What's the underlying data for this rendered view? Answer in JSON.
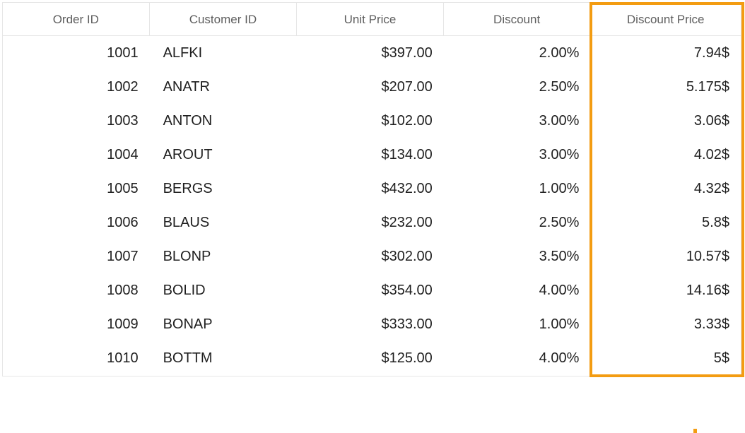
{
  "grid": {
    "columns": [
      "Order ID",
      "Customer ID",
      "Unit Price",
      "Discount",
      "Discount Price"
    ],
    "rows": [
      [
        "1001",
        "ALFKI",
        "$397.00",
        "2.00%",
        "7.94$"
      ],
      [
        "1002",
        "ANATR",
        "$207.00",
        "2.50%",
        "5.175$"
      ],
      [
        "1003",
        "ANTON",
        "$102.00",
        "3.00%",
        "3.06$"
      ],
      [
        "1004",
        "AROUT",
        "$134.00",
        "3.00%",
        "4.02$"
      ],
      [
        "1005",
        "BERGS",
        "$432.00",
        "1.00%",
        "4.32$"
      ],
      [
        "1006",
        "BLAUS",
        "$232.00",
        "2.50%",
        "5.8$"
      ],
      [
        "1007",
        "BLONP",
        "$302.00",
        "3.50%",
        "10.57$"
      ],
      [
        "1008",
        "BOLID",
        "$354.00",
        "4.00%",
        "14.16$"
      ],
      [
        "1009",
        "BONAP",
        "$333.00",
        "1.00%",
        "3.33$"
      ],
      [
        "1010",
        "BOTTM",
        "$125.00",
        "4.00%",
        "5$"
      ]
    ]
  },
  "colors": {
    "highlight": "#f39c12",
    "border": "#e6e6e6",
    "header_text": "#5e5e5e",
    "cell_text": "#1f1f1f"
  }
}
